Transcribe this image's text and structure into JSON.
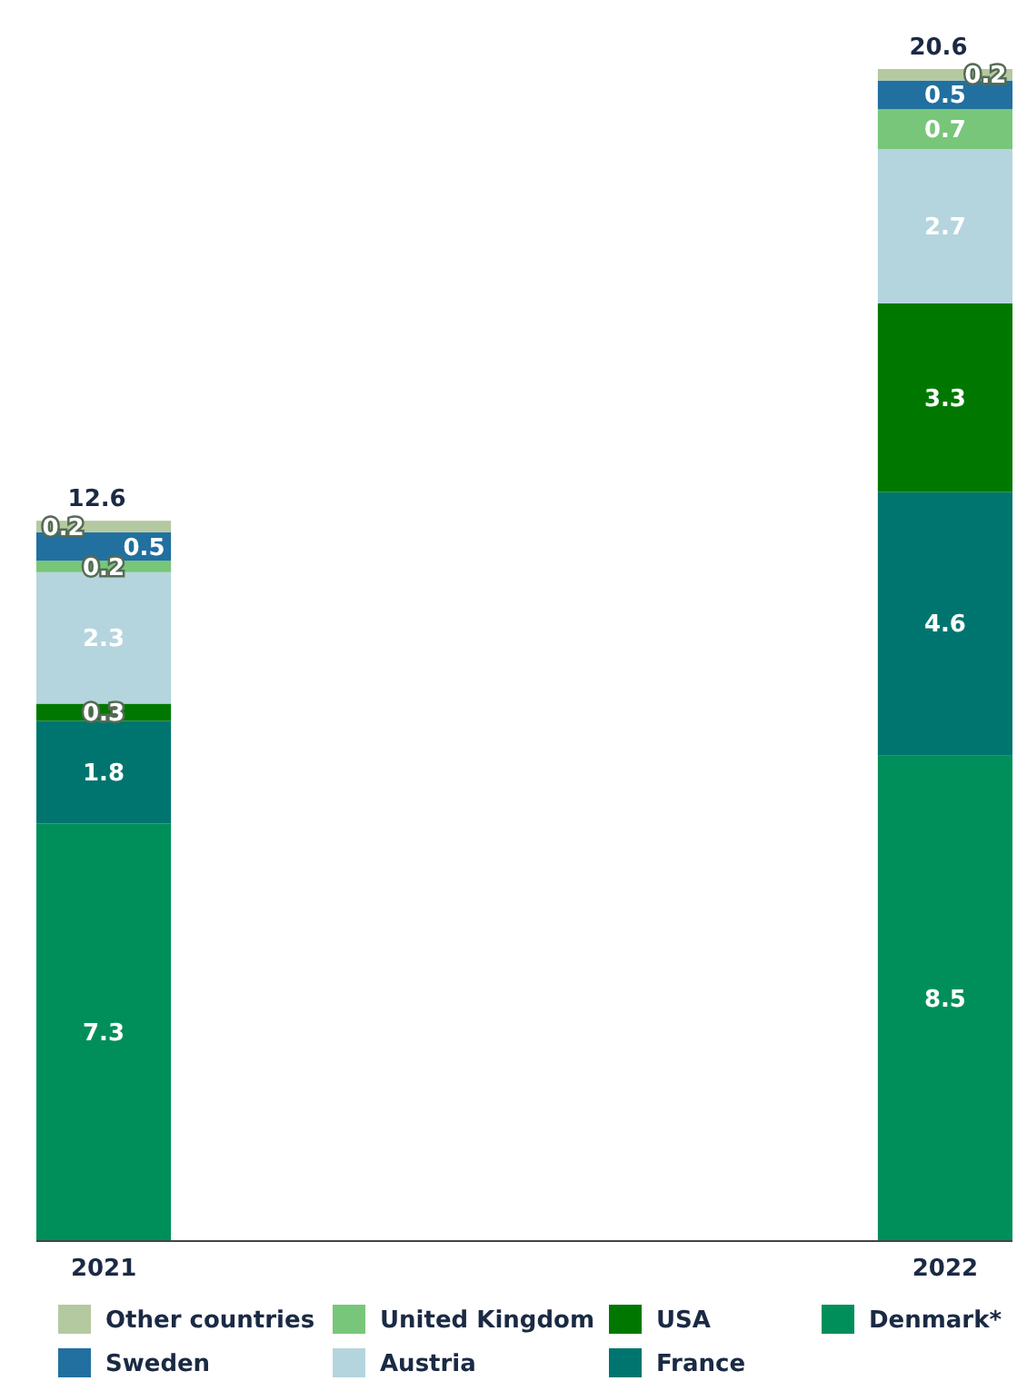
{
  "chart_data": {
    "type": "bar",
    "stacked": true,
    "categories": [
      "2021",
      "2022"
    ],
    "data_labels": true,
    "totals": [
      "12.6",
      "20.6"
    ],
    "legend": "bottom",
    "series": [
      {
        "name": "Denmark*",
        "color": "#008f5a",
        "values": [
          7.3,
          8.5
        ]
      },
      {
        "name": "France",
        "color": "#00756f",
        "values": [
          1.8,
          4.6
        ]
      },
      {
        "name": "USA",
        "color": "#007800",
        "values": [
          0.3,
          3.3
        ]
      },
      {
        "name": "Austria",
        "color": "#b5d5de",
        "values": [
          2.3,
          2.7
        ]
      },
      {
        "name": "United Kingdom",
        "color": "#78c679",
        "values": [
          0.2,
          0.7
        ]
      },
      {
        "name": "Sweden",
        "color": "#2170a0",
        "values": [
          0.5,
          0.5
        ]
      },
      {
        "name": "Other countries",
        "color": "#b5c9a0",
        "values": [
          0.2,
          0.2
        ]
      }
    ]
  }
}
